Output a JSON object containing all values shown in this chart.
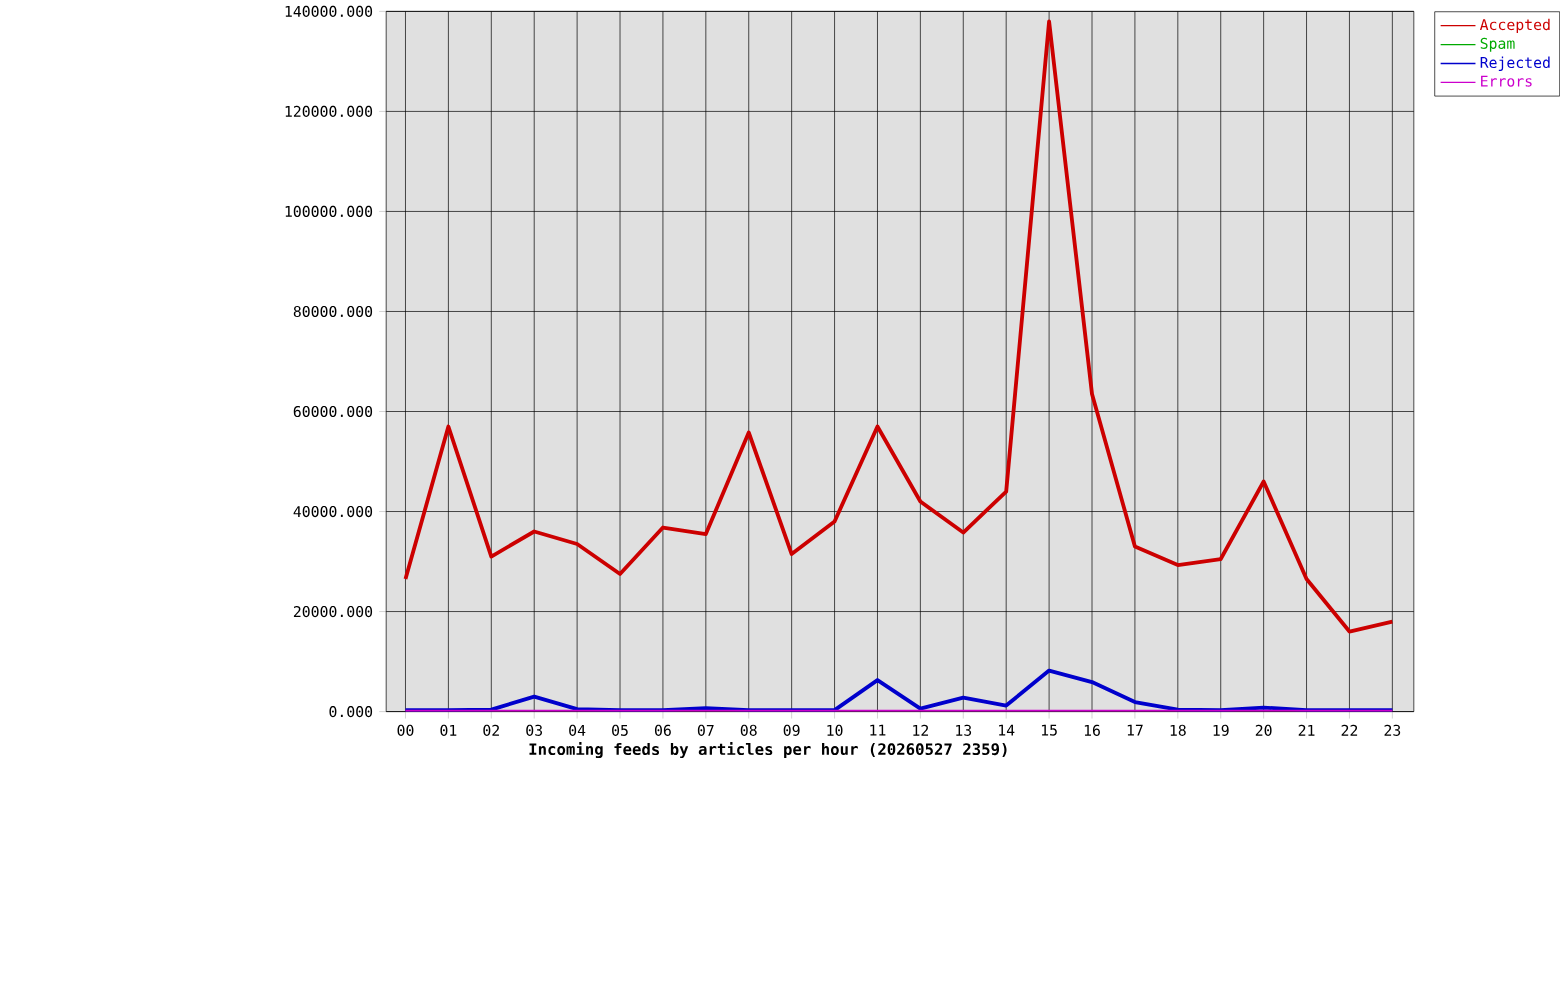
{
  "chart_data": {
    "type": "line",
    "xlabel": "Incoming feeds by articles per hour (20260527 2359)",
    "categories": [
      "00",
      "01",
      "02",
      "03",
      "04",
      "05",
      "06",
      "07",
      "08",
      "09",
      "10",
      "11",
      "12",
      "13",
      "14",
      "15",
      "16",
      "17",
      "18",
      "19",
      "20",
      "21",
      "22",
      "23"
    ],
    "series": [
      {
        "name": "Accepted",
        "color": "#cc0000",
        "values": [
          26500,
          57000,
          31000,
          36000,
          33500,
          27500,
          36800,
          35500,
          55800,
          31500,
          38000,
          57000,
          42000,
          35800,
          44000,
          138000,
          63500,
          33000,
          29300,
          30500,
          46000,
          26500,
          16000,
          18000
        ]
      },
      {
        "name": "Spam",
        "color": "#00aa00",
        "values": [
          null,
          null,
          null,
          null,
          null,
          null,
          null,
          null,
          null,
          null,
          null,
          null,
          null,
          null,
          null,
          null,
          null,
          null,
          null,
          null,
          null,
          null,
          null,
          null
        ]
      },
      {
        "name": "Rejected",
        "color": "#0000cc",
        "values": [
          300,
          300,
          400,
          3000,
          500,
          300,
          300,
          700,
          300,
          300,
          300,
          6300,
          600,
          2800,
          1200,
          8200,
          5900,
          1900,
          400,
          300,
          800,
          300,
          300,
          300
        ]
      },
      {
        "name": "Errors",
        "color": "#cc00cc",
        "values": [
          0,
          0,
          0,
          0,
          0,
          0,
          0,
          0,
          0,
          0,
          0,
          0,
          0,
          0,
          0,
          0,
          0,
          0,
          0,
          0,
          0,
          0,
          0,
          0
        ]
      }
    ],
    "ylim": [
      0,
      140000
    ],
    "yticks": [
      {
        "value": 0,
        "label": "0.000"
      },
      {
        "value": 20000,
        "label": "20000.000"
      },
      {
        "value": 40000,
        "label": "40000.000"
      },
      {
        "value": 60000,
        "label": "60000.000"
      },
      {
        "value": 80000,
        "label": "80000.000"
      },
      {
        "value": 100000,
        "label": "100000.000"
      },
      {
        "value": 120000,
        "label": "120000.000"
      },
      {
        "value": 140000,
        "label": "140000.000"
      }
    ],
    "grid": true,
    "legend": "top right"
  }
}
